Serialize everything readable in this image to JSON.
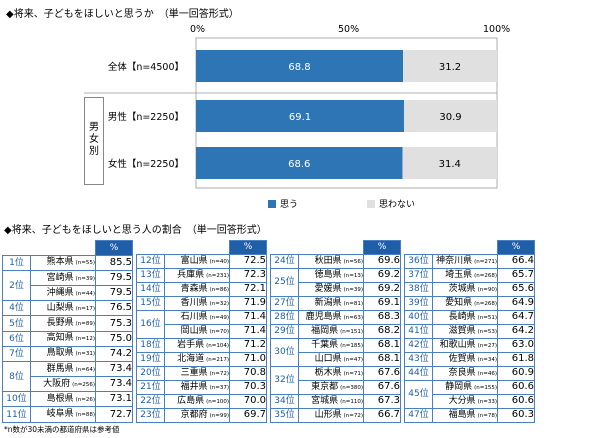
{
  "chart_data": [
    {
      "type": "bar",
      "title": "◆将来、子どもをほしいと思うか　（単一回答形式）",
      "categories": [
        "全体【n=4500】",
        "男性【n=2250】",
        "女性【n=2250】"
      ],
      "group_label": "男女別",
      "series": [
        {
          "name": "思う",
          "values": [
            68.8,
            69.1,
            68.6
          ],
          "color": "#2e75b6"
        },
        {
          "name": "思わない",
          "values": [
            31.2,
            30.9,
            31.4
          ],
          "color": "#e0e0e0"
        }
      ],
      "x_ticks": [
        "0%",
        "50%",
        "100%"
      ],
      "xlim": [
        0,
        100
      ],
      "stacked": true,
      "legend_position": "bottom"
    },
    {
      "type": "table",
      "title": "◆将来、子どもをほしいと思う人の割合　（単一回答形式）",
      "header_unit": "%",
      "columns": [
        [
          {
            "rank": "1位",
            "name": "熊本県",
            "n": "(n=55)",
            "value": "85.5"
          },
          {
            "rank": "2位",
            "name": "宮崎県",
            "n": "(n=39)",
            "value": "79.5"
          },
          {
            "rank": "",
            "name": "沖縄県",
            "n": "(n=44)",
            "value": "79.5"
          },
          {
            "rank": "4位",
            "name": "山梨県",
            "n": "(n=17)",
            "value": "76.5"
          },
          {
            "rank": "5位",
            "name": "長野県",
            "n": "(n=89)",
            "value": "75.3"
          },
          {
            "rank": "6位",
            "name": "高知県",
            "n": "(n=12)",
            "value": "75.0"
          },
          {
            "rank": "7位",
            "name": "鳥取県",
            "n": "(n=31)",
            "value": "74.2"
          },
          {
            "rank": "8位",
            "name": "群馬県",
            "n": "(n=64)",
            "value": "73.4"
          },
          {
            "rank": "",
            "name": "大阪府",
            "n": "(n=256)",
            "value": "73.4"
          },
          {
            "rank": "10位",
            "name": "島根県",
            "n": "(n=26)",
            "value": "73.1"
          },
          {
            "rank": "11位",
            "name": "岐阜県",
            "n": "(n=88)",
            "value": "72.7"
          }
        ],
        [
          {
            "rank": "12位",
            "name": "富山県",
            "n": "(n=40)",
            "value": "72.5"
          },
          {
            "rank": "13位",
            "name": "兵庫県",
            "n": "(n=231)",
            "value": "72.3"
          },
          {
            "rank": "14位",
            "name": "青森県",
            "n": "(n=86)",
            "value": "72.1"
          },
          {
            "rank": "15位",
            "name": "香川県",
            "n": "(n=32)",
            "value": "71.9"
          },
          {
            "rank": "16位",
            "name": "石川県",
            "n": "(n=49)",
            "value": "71.4"
          },
          {
            "rank": "",
            "name": "岡山県",
            "n": "(n=70)",
            "value": "71.4"
          },
          {
            "rank": "18位",
            "name": "岩手県",
            "n": "(n=104)",
            "value": "71.2"
          },
          {
            "rank": "19位",
            "name": "北海道",
            "n": "(n=217)",
            "value": "71.0"
          },
          {
            "rank": "20位",
            "name": "三重県",
            "n": "(n=72)",
            "value": "70.8"
          },
          {
            "rank": "21位",
            "name": "福井県",
            "n": "(n=37)",
            "value": "70.3"
          },
          {
            "rank": "22位",
            "name": "広島県",
            "n": "(n=100)",
            "value": "70.0"
          },
          {
            "rank": "23位",
            "name": "京都府",
            "n": "(n=99)",
            "value": "69.7"
          }
        ],
        [
          {
            "rank": "24位",
            "name": "秋田県",
            "n": "(n=56)",
            "value": "69.6"
          },
          {
            "rank": "25位",
            "name": "徳島県",
            "n": "(n=13)",
            "value": "69.2"
          },
          {
            "rank": "",
            "name": "愛媛県",
            "n": "(n=39)",
            "value": "69.2"
          },
          {
            "rank": "27位",
            "name": "新潟県",
            "n": "(n=81)",
            "value": "69.1"
          },
          {
            "rank": "28位",
            "name": "鹿児島県",
            "n": "(n=63)",
            "value": "68.3"
          },
          {
            "rank": "29位",
            "name": "福岡県",
            "n": "(n=151)",
            "value": "68.2"
          },
          {
            "rank": "30位",
            "name": "千葉県",
            "n": "(n=185)",
            "value": "68.1"
          },
          {
            "rank": "",
            "name": "山口県",
            "n": "(n=47)",
            "value": "68.1"
          },
          {
            "rank": "32位",
            "name": "栃木県",
            "n": "(n=71)",
            "value": "67.6"
          },
          {
            "rank": "",
            "name": "東京都",
            "n": "(n=380)",
            "value": "67.6"
          },
          {
            "rank": "34位",
            "name": "宮城県",
            "n": "(n=110)",
            "value": "67.3"
          },
          {
            "rank": "35位",
            "name": "山形県",
            "n": "(n=72)",
            "value": "66.7"
          }
        ],
        [
          {
            "rank": "36位",
            "name": "神奈川県",
            "n": "(n=271)",
            "value": "66.4"
          },
          {
            "rank": "37位",
            "name": "埼玉県",
            "n": "(n=268)",
            "value": "65.7"
          },
          {
            "rank": "38位",
            "name": "茨城県",
            "n": "(n=90)",
            "value": "65.6"
          },
          {
            "rank": "39位",
            "name": "愛知県",
            "n": "(n=268)",
            "value": "64.9"
          },
          {
            "rank": "40位",
            "name": "長崎県",
            "n": "(n=51)",
            "value": "64.7"
          },
          {
            "rank": "41位",
            "name": "滋賀県",
            "n": "(n=53)",
            "value": "64.2"
          },
          {
            "rank": "42位",
            "name": "和歌山県",
            "n": "(n=27)",
            "value": "63.0"
          },
          {
            "rank": "43位",
            "name": "佐賀県",
            "n": "(n=34)",
            "value": "61.8"
          },
          {
            "rank": "44位",
            "name": "奈良県",
            "n": "(n=46)",
            "value": "60.9"
          },
          {
            "rank": "45位",
            "name": "静岡県",
            "n": "(n=155)",
            "value": "60.6"
          },
          {
            "rank": "",
            "name": "大分県",
            "n": "(n=33)",
            "value": "60.6"
          },
          {
            "rank": "47位",
            "name": "福島県",
            "n": "(n=78)",
            "value": "60.3"
          }
        ]
      ],
      "footnote": "*n数が30未満の都道府県は参考値"
    }
  ]
}
